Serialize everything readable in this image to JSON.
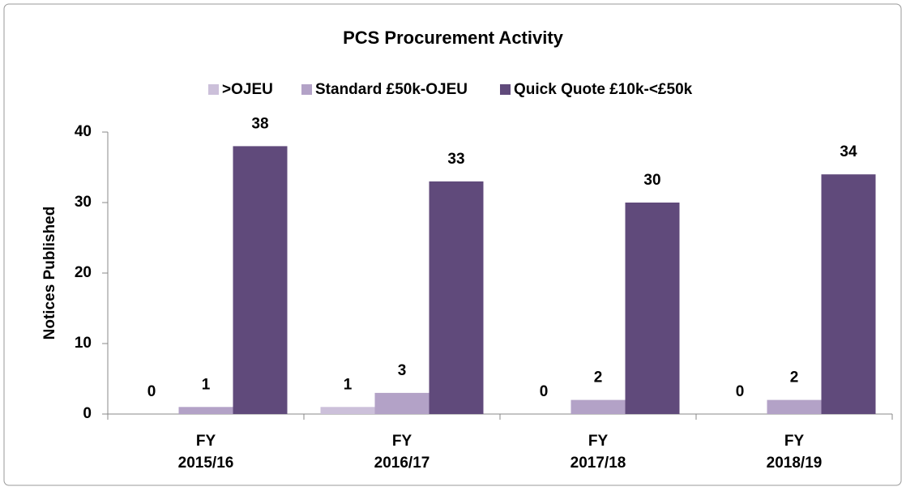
{
  "chart_data": {
    "type": "bar",
    "title": "PCS Procurement Activity",
    "y_label": "Notices Published",
    "categories": [
      "FY\n2015/16",
      "FY\n2016/17",
      "FY\n2017/18",
      "FY\n2018/19"
    ],
    "series": [
      {
        "name": ">OJEU",
        "color": "#ccc0da",
        "values": [
          0,
          1,
          0,
          0
        ]
      },
      {
        "name": "Standard £50k-OJEU",
        "color": "#b3a2c7",
        "values": [
          1,
          3,
          2,
          2
        ]
      },
      {
        "name": "Quick Quote £10k-<£50k",
        "color": "#604a7b",
        "values": [
          38,
          33,
          30,
          34
        ]
      }
    ],
    "ylim": [
      0,
      40
    ],
    "yticks": [
      0,
      10,
      20,
      30,
      40
    ],
    "legend": "top",
    "grid": false
  }
}
